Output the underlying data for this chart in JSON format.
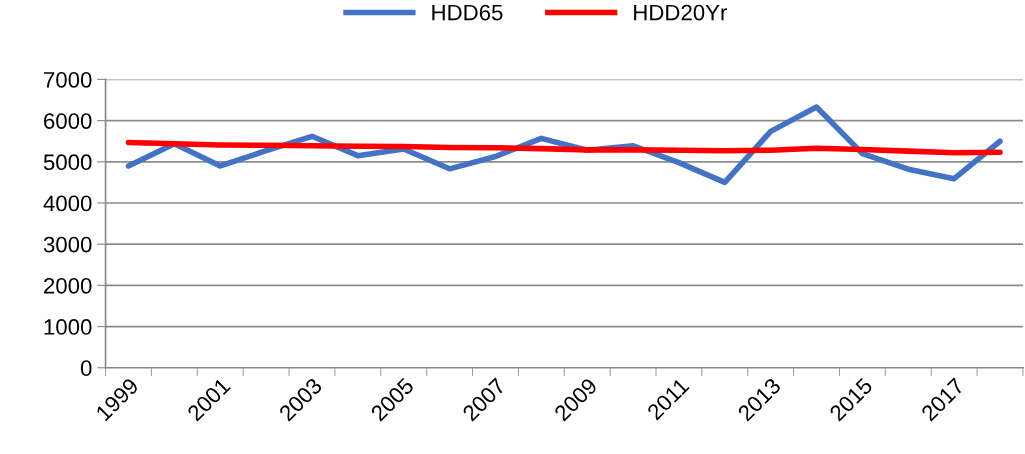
{
  "chart_data": {
    "type": "line",
    "categories": [
      "1999",
      null,
      "2001",
      null,
      "2003",
      null,
      "2005",
      null,
      "2007",
      null,
      "2009",
      null,
      "2011",
      null,
      "2013",
      null,
      "2015",
      null,
      "2017",
      null
    ],
    "series": [
      {
        "name": "HDD65",
        "color": "#4472c4",
        "values": [
          4900,
          5440,
          4900,
          5270,
          5620,
          5150,
          5310,
          4830,
          5130,
          5570,
          5280,
          5390,
          4980,
          4500,
          5740,
          6330,
          5200,
          4820,
          4590,
          5500
        ]
      },
      {
        "name": "HDD20Yr",
        "color": "#ff0000",
        "values": [
          5470,
          5440,
          5410,
          5400,
          5390,
          5380,
          5370,
          5350,
          5340,
          5320,
          5290,
          5290,
          5280,
          5270,
          5280,
          5330,
          5300,
          5260,
          5220,
          5230
        ]
      }
    ],
    "ylim": [
      0,
      7000
    ],
    "yticks": [
      0,
      1000,
      2000,
      3000,
      4000,
      5000,
      6000,
      7000
    ],
    "grid": "y",
    "legend": "top",
    "marker": "none",
    "line_style": "solid"
  }
}
